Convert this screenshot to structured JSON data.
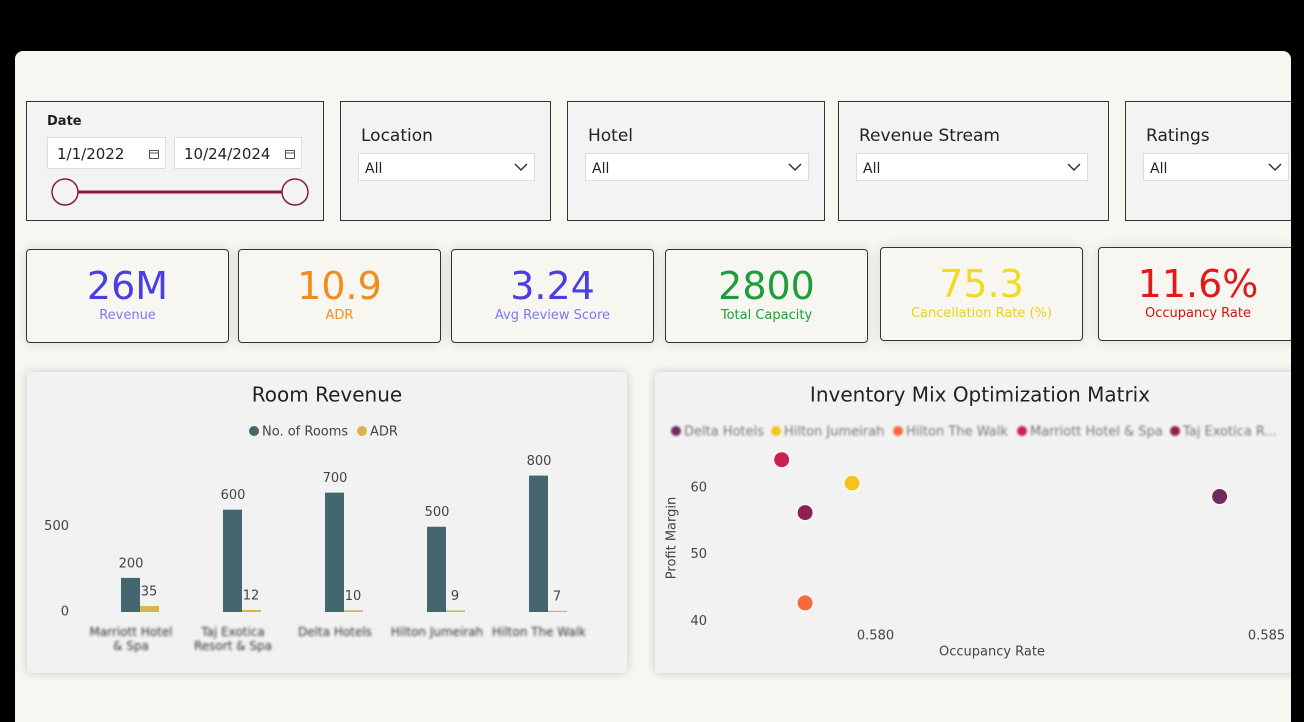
{
  "filters": {
    "date": {
      "label": "Date",
      "start": "1/1/2022",
      "end": "10/24/2024"
    },
    "dropdowns": [
      {
        "label": "Location",
        "value": "All"
      },
      {
        "label": "Hotel",
        "value": "All"
      },
      {
        "label": "Revenue Stream",
        "value": "All"
      },
      {
        "label": "Ratings",
        "value": "All"
      }
    ]
  },
  "kpis": [
    {
      "value": "26M",
      "label": "Revenue",
      "color": "#4a3fe0",
      "label_color": "#7b7bef"
    },
    {
      "value": "10.9",
      "label": "ADR",
      "color": "#f28c1e",
      "label_color": "#f28c1e"
    },
    {
      "value": "3.24",
      "label": "Avg Review Score",
      "color": "#4a3fe0",
      "label_color": "#7b7bef"
    },
    {
      "value": "2800",
      "label": "Total Capacity",
      "color": "#1e9e3a",
      "label_color": "#1e9e3a"
    },
    {
      "value": "75.3",
      "label": "Cancellation Rate (%)",
      "color": "#f0dc1e",
      "label_color": "#e8d21a"
    },
    {
      "value": "11.6%",
      "label": "Occupancy Rate",
      "color": "#e01919",
      "label_color": "#c81414"
    }
  ],
  "chart_data": [
    {
      "type": "bar",
      "title": "Room Revenue",
      "categories": [
        "Marriott Hotel & Spa",
        "Taj Exotica Resort & Spa",
        "Delta Hotels",
        "Hilton Jumeirah",
        "Hilton The Walk"
      ],
      "series": [
        {
          "name": "No. of Rooms",
          "color": "#44666e",
          "values": [
            200,
            600,
            700,
            500,
            800
          ]
        },
        {
          "name": "ADR",
          "color": "#d9b44a",
          "values": [
            35,
            12,
            10,
            9,
            7
          ]
        }
      ],
      "ylim": [
        0,
        950
      ],
      "yticks": [
        0,
        500
      ],
      "grid": false
    },
    {
      "type": "scatter",
      "title": "Inventory Mix Optimization Matrix",
      "x_label": "Occupancy Rate",
      "y_label": "Profit Margin",
      "series": [
        {
          "name": "Delta Hotels",
          "color": "#6e2c5e",
          "x": [
            0.5844
          ],
          "values": [
            58.7
          ]
        },
        {
          "name": "Hilton Jumeirah",
          "color": "#f7c21b",
          "x": [
            0.5797
          ],
          "values": [
            60.7
          ]
        },
        {
          "name": "Hilton The Walk",
          "color": "#f56a3c",
          "x": [
            0.5791
          ],
          "values": [
            42.8
          ]
        },
        {
          "name": "Marriott Hotel & Spa",
          "color": "#c9214f",
          "x": [
            0.5788
          ],
          "values": [
            64.2
          ]
        },
        {
          "name": "Taj Exotica R...",
          "color": "#8e1f50",
          "x": [
            0.5791
          ],
          "values": [
            56.3
          ]
        }
      ],
      "xlim": [
        0.5775,
        0.5853
      ],
      "xticks": [
        {
          "value": 0.58,
          "label": "0.580"
        },
        {
          "value": 0.585,
          "label": "0.585"
        }
      ],
      "ylim": [
        38,
        66.4
      ],
      "yticks": [
        40,
        50,
        60
      ],
      "grid": false
    }
  ]
}
